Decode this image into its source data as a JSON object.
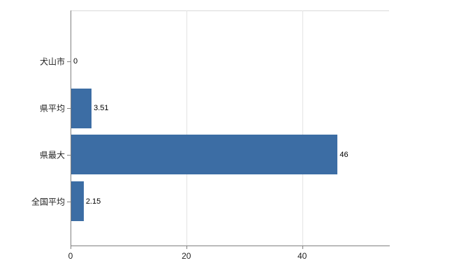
{
  "chart_data": {
    "type": "bar",
    "orientation": "horizontal",
    "title": "",
    "xlabel": "",
    "ylabel": "",
    "categories": [
      "犬山市",
      "県平均",
      "県最大",
      "全国平均"
    ],
    "values": [
      0,
      3.51,
      46,
      2.15
    ],
    "value_labels": [
      "0",
      "3.51",
      "46",
      "2.15"
    ],
    "x_ticks": [
      0,
      20,
      40
    ],
    "xlim": [
      0,
      55
    ],
    "bar_color": "#3c6da4",
    "grid": true,
    "legend": false,
    "background": "#ffffff"
  }
}
